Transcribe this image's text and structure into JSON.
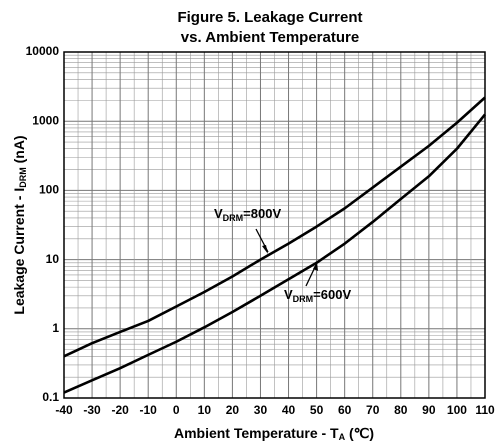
{
  "chart_data": {
    "type": "line",
    "title": [
      "Figure 5. Leakage Current",
      "vs. Ambient Temperature"
    ],
    "x_label": {
      "main": "Ambient Temperature - T",
      "sub": "A",
      "rest": " (℃)"
    },
    "y_label": {
      "main": "Leakage Current - I",
      "sub": "DRM",
      "rest": " (nA)"
    },
    "x": [
      -40,
      -30,
      -20,
      -10,
      0,
      10,
      20,
      30,
      40,
      50,
      60,
      70,
      80,
      90,
      100,
      110
    ],
    "series": [
      {
        "label": {
          "main": "V",
          "sub": "DRM",
          "rest": "=800V"
        },
        "color": "#000000",
        "values": [
          0.4,
          0.62,
          0.9,
          1.3,
          2.1,
          3.4,
          5.7,
          10,
          17,
          30,
          55,
          110,
          220,
          440,
          950,
          2200
        ]
      },
      {
        "label": {
          "main": "V",
          "sub": "DRM",
          "rest": "=600V"
        },
        "color": "#000000",
        "values": [
          0.12,
          0.18,
          0.27,
          0.42,
          0.65,
          1.05,
          1.75,
          3.0,
          5.2,
          9,
          17,
          35,
          75,
          160,
          400,
          1250
        ]
      }
    ],
    "xlim": [
      -40,
      110
    ],
    "xticks": [
      -40,
      -30,
      -20,
      -10,
      0,
      10,
      20,
      30,
      40,
      50,
      60,
      70,
      80,
      90,
      100,
      110
    ],
    "ylim": [
      0.1,
      10000
    ],
    "yticks": [
      0.1,
      1,
      10,
      100,
      1000,
      10000
    ],
    "ylog": true,
    "grid": true
  }
}
